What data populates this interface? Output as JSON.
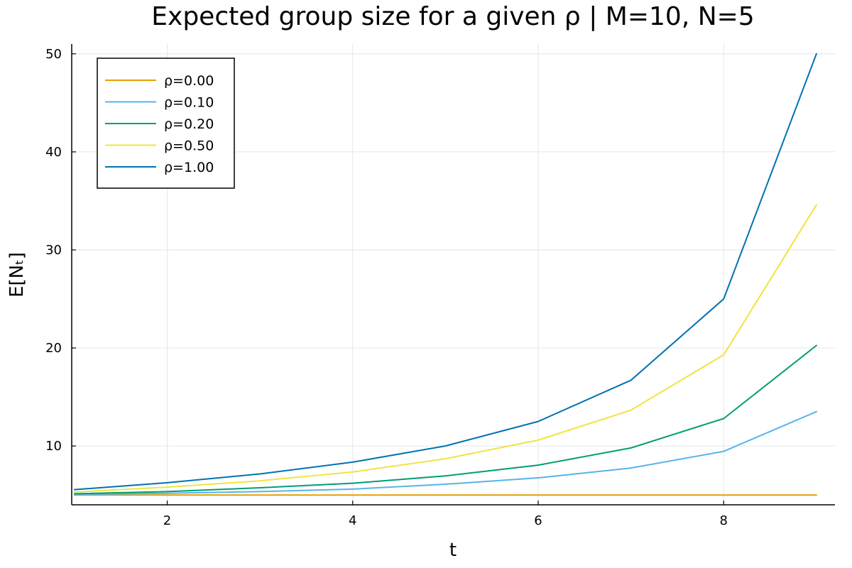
{
  "chart_data": {
    "type": "line",
    "title": "Expected group size for a given ρ | M=10, N=5",
    "xlabel": "t",
    "ylabel": "E[Nₜ]",
    "xlim": [
      1,
      9
    ],
    "ylim": [
      4,
      51
    ],
    "xticks": [
      2,
      4,
      6,
      8
    ],
    "yticks": [
      10,
      20,
      30,
      40,
      50
    ],
    "grid": true,
    "legend_position": "top-left",
    "x": [
      1,
      2,
      3,
      4,
      5,
      6,
      7,
      8,
      9
    ],
    "series": [
      {
        "name": "ρ=0.00",
        "color": "#e69f00",
        "values": [
          5.0,
          5.0,
          5.0,
          5.0,
          5.0,
          5.0,
          5.0,
          5.0,
          5.0
        ]
      },
      {
        "name": "ρ=0.10",
        "color": "#56b4e9",
        "values": [
          5.06,
          5.18,
          5.35,
          5.6,
          6.1,
          6.75,
          7.75,
          9.45,
          13.5
        ]
      },
      {
        "name": "ρ=0.20",
        "color": "#009e73",
        "values": [
          5.13,
          5.35,
          5.74,
          6.2,
          6.95,
          8.05,
          9.8,
          12.8,
          20.25
        ]
      },
      {
        "name": "ρ=0.50",
        "color": "#f0e442",
        "values": [
          5.3,
          5.8,
          6.45,
          7.35,
          8.7,
          10.6,
          13.65,
          19.3,
          34.6
        ]
      },
      {
        "name": "ρ=1.00",
        "color": "#0072b2",
        "values": [
          5.55,
          6.25,
          7.15,
          8.35,
          10.0,
          12.5,
          16.7,
          25.0,
          50.0
        ]
      }
    ]
  }
}
